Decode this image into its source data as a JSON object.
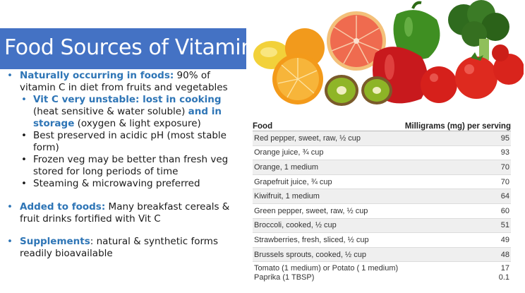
{
  "slide": {
    "title": "Food Sources of Vitamin C"
  },
  "bullets": {
    "b1_kw": "Naturally occurring in foods:",
    "b1_text": " 90% of vitamin C in diet from fruits and vegetables",
    "b1_sub1_kw1": "Vit C very unstable: lost in cooking",
    "b1_sub1_text1": " (heat sensitive & water soluble) ",
    "b1_sub1_kw2": "and in storage",
    "b1_sub1_text2": " (oxygen & light exposure)",
    "b1_sub2": "Best preserved in acidic pH (most stable form)",
    "b1_sub3": "Frozen veg may be better than fresh veg stored for long periods of time",
    "b1_sub4": "Steaming & microwaving preferred",
    "b2_kw": "Added to foods:",
    "b2_text": " Many breakfast cereals & fruit drinks fortified with Vit C",
    "b3_kw": "Supplements",
    "b3_text": ": natural & synthetic forms readily bioavailable"
  },
  "table": {
    "headers": [
      "Food",
      "Milligrams (mg) per serving"
    ],
    "rows": [
      {
        "food": "Red pepper, sweet, raw, ½ cup",
        "mg": "95"
      },
      {
        "food": "Orange juice, ¾ cup",
        "mg": "93"
      },
      {
        "food": "Orange, 1 medium",
        "mg": "70"
      },
      {
        "food": "Grapefruit juice, ¾ cup",
        "mg": "70"
      },
      {
        "food": "Kiwifruit, 1 medium",
        "mg": "64"
      },
      {
        "food": "Green pepper, sweet, raw, ½ cup",
        "mg": "60"
      },
      {
        "food": "Broccoli, cooked, ½ cup",
        "mg": "51"
      },
      {
        "food": "Strawberries, fresh, sliced, ½ cup",
        "mg": "49"
      },
      {
        "food": "Brussels sprouts, cooked, ½ cup",
        "mg": "48"
      },
      {
        "food": "Tomato (1 medium) or Potato ( 1 medium)",
        "mg": "17"
      },
      {
        "food": "Paprika (1 TBSP)",
        "mg": "0.1"
      }
    ]
  },
  "colors": {
    "banner": "#4472c4",
    "keyword": "#2e75b6"
  }
}
